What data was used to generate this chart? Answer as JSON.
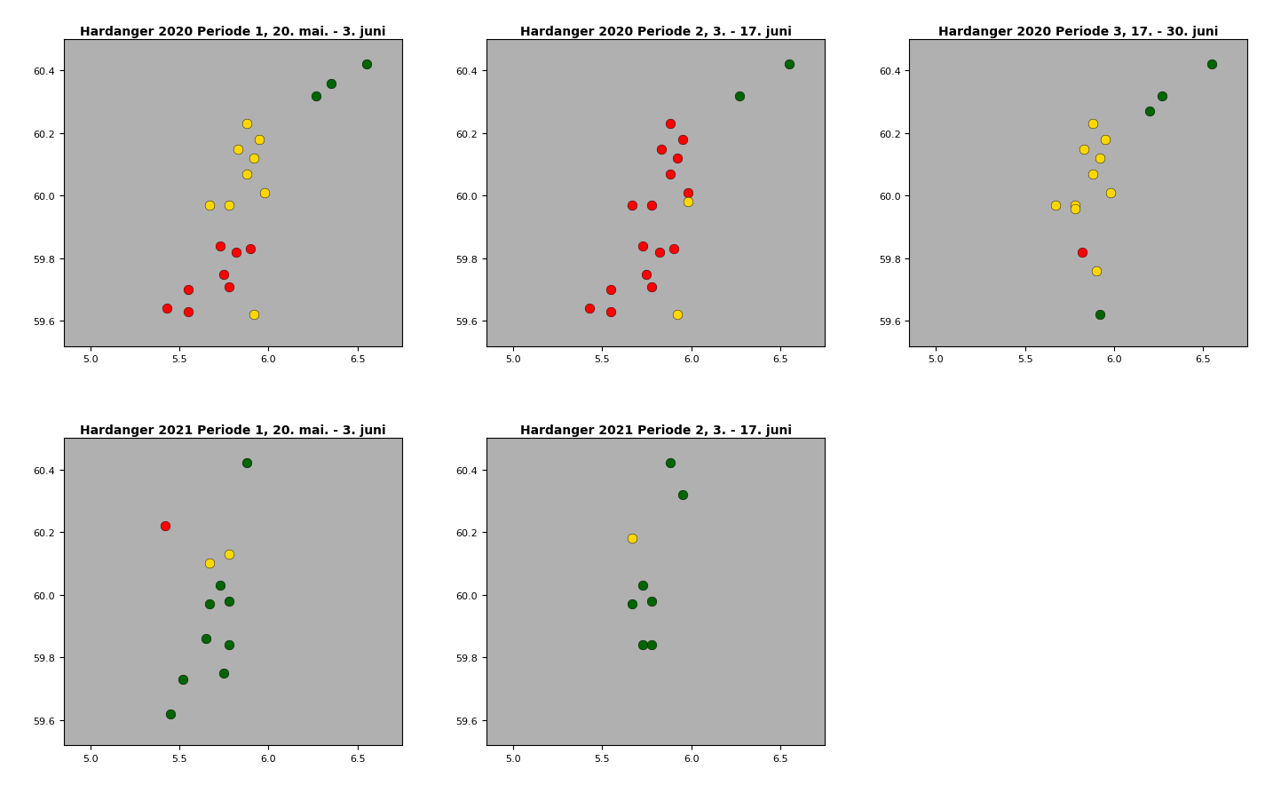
{
  "panels": [
    {
      "title": "Hardanger 2020 Periode 1, 20. mai. - 3. juni",
      "row": 0,
      "col": 0,
      "points": [
        {
          "lon": 6.55,
          "lat": 60.42,
          "color": "#006400"
        },
        {
          "lon": 6.35,
          "lat": 60.36,
          "color": "#006400"
        },
        {
          "lon": 6.27,
          "lat": 60.32,
          "color": "#006400"
        },
        {
          "lon": 5.88,
          "lat": 60.23,
          "color": "#FFD700"
        },
        {
          "lon": 5.95,
          "lat": 60.18,
          "color": "#FFD700"
        },
        {
          "lon": 5.83,
          "lat": 60.15,
          "color": "#FFD700"
        },
        {
          "lon": 5.92,
          "lat": 60.12,
          "color": "#FFD700"
        },
        {
          "lon": 5.88,
          "lat": 60.07,
          "color": "#FFD700"
        },
        {
          "lon": 5.98,
          "lat": 60.01,
          "color": "#FFD700"
        },
        {
          "lon": 5.78,
          "lat": 59.97,
          "color": "#FFD700"
        },
        {
          "lon": 5.67,
          "lat": 59.97,
          "color": "#FFD700"
        },
        {
          "lon": 5.73,
          "lat": 59.84,
          "color": "red"
        },
        {
          "lon": 5.82,
          "lat": 59.82,
          "color": "red"
        },
        {
          "lon": 5.9,
          "lat": 59.83,
          "color": "red"
        },
        {
          "lon": 5.75,
          "lat": 59.75,
          "color": "red"
        },
        {
          "lon": 5.78,
          "lat": 59.71,
          "color": "red"
        },
        {
          "lon": 5.55,
          "lat": 59.7,
          "color": "red"
        },
        {
          "lon": 5.43,
          "lat": 59.64,
          "color": "red"
        },
        {
          "lon": 5.55,
          "lat": 59.63,
          "color": "red"
        },
        {
          "lon": 5.92,
          "lat": 59.62,
          "color": "#FFD700"
        }
      ]
    },
    {
      "title": "Hardanger 2020 Periode 2, 3. - 17. juni",
      "row": 0,
      "col": 1,
      "points": [
        {
          "lon": 6.55,
          "lat": 60.42,
          "color": "#006400"
        },
        {
          "lon": 6.27,
          "lat": 60.32,
          "color": "#006400"
        },
        {
          "lon": 5.88,
          "lat": 60.23,
          "color": "red"
        },
        {
          "lon": 5.95,
          "lat": 60.18,
          "color": "red"
        },
        {
          "lon": 5.83,
          "lat": 60.15,
          "color": "red"
        },
        {
          "lon": 5.92,
          "lat": 60.12,
          "color": "red"
        },
        {
          "lon": 5.88,
          "lat": 60.07,
          "color": "red"
        },
        {
          "lon": 5.98,
          "lat": 60.01,
          "color": "red"
        },
        {
          "lon": 5.78,
          "lat": 59.97,
          "color": "red"
        },
        {
          "lon": 5.67,
          "lat": 59.97,
          "color": "red"
        },
        {
          "lon": 5.73,
          "lat": 59.84,
          "color": "red"
        },
        {
          "lon": 5.82,
          "lat": 59.82,
          "color": "red"
        },
        {
          "lon": 5.9,
          "lat": 59.83,
          "color": "red"
        },
        {
          "lon": 5.75,
          "lat": 59.75,
          "color": "red"
        },
        {
          "lon": 5.78,
          "lat": 59.71,
          "color": "red"
        },
        {
          "lon": 5.55,
          "lat": 59.7,
          "color": "red"
        },
        {
          "lon": 5.43,
          "lat": 59.64,
          "color": "red"
        },
        {
          "lon": 5.55,
          "lat": 59.63,
          "color": "red"
        },
        {
          "lon": 5.92,
          "lat": 59.62,
          "color": "#FFD700"
        },
        {
          "lon": 5.98,
          "lat": 59.98,
          "color": "#FFD700"
        }
      ]
    },
    {
      "title": "Hardanger 2020 Periode 3, 17. - 30. juni",
      "row": 0,
      "col": 2,
      "points": [
        {
          "lon": 6.55,
          "lat": 60.42,
          "color": "#006400"
        },
        {
          "lon": 6.27,
          "lat": 60.32,
          "color": "#006400"
        },
        {
          "lon": 6.2,
          "lat": 60.27,
          "color": "#006400"
        },
        {
          "lon": 5.88,
          "lat": 60.23,
          "color": "#FFD700"
        },
        {
          "lon": 5.95,
          "lat": 60.18,
          "color": "#FFD700"
        },
        {
          "lon": 5.83,
          "lat": 60.15,
          "color": "#FFD700"
        },
        {
          "lon": 5.92,
          "lat": 60.12,
          "color": "#FFD700"
        },
        {
          "lon": 5.88,
          "lat": 60.07,
          "color": "#FFD700"
        },
        {
          "lon": 5.98,
          "lat": 60.01,
          "color": "#FFD700"
        },
        {
          "lon": 5.78,
          "lat": 59.97,
          "color": "#FFD700"
        },
        {
          "lon": 5.67,
          "lat": 59.97,
          "color": "#FFD700"
        },
        {
          "lon": 5.78,
          "lat": 59.96,
          "color": "#FFD700"
        },
        {
          "lon": 5.82,
          "lat": 59.82,
          "color": "red"
        },
        {
          "lon": 5.9,
          "lat": 59.76,
          "color": "#FFD700"
        },
        {
          "lon": 5.92,
          "lat": 59.62,
          "color": "#006400"
        }
      ]
    },
    {
      "title": "Hardanger 2021 Periode 1, 20. mai. - 3. juni",
      "row": 1,
      "col": 0,
      "points": [
        {
          "lon": 5.88,
          "lat": 60.42,
          "color": "#006400"
        },
        {
          "lon": 5.42,
          "lat": 60.22,
          "color": "red"
        },
        {
          "lon": 5.78,
          "lat": 60.13,
          "color": "#FFD700"
        },
        {
          "lon": 5.67,
          "lat": 60.1,
          "color": "#FFD700"
        },
        {
          "lon": 5.73,
          "lat": 60.03,
          "color": "#006400"
        },
        {
          "lon": 5.78,
          "lat": 59.98,
          "color": "#006400"
        },
        {
          "lon": 5.67,
          "lat": 59.97,
          "color": "#006400"
        },
        {
          "lon": 5.65,
          "lat": 59.86,
          "color": "#006400"
        },
        {
          "lon": 5.78,
          "lat": 59.84,
          "color": "#006400"
        },
        {
          "lon": 5.75,
          "lat": 59.75,
          "color": "#006400"
        },
        {
          "lon": 5.52,
          "lat": 59.73,
          "color": "#006400"
        },
        {
          "lon": 5.45,
          "lat": 59.62,
          "color": "#006400"
        }
      ]
    },
    {
      "title": "Hardanger 2021 Periode 2, 3. - 17. juni",
      "row": 1,
      "col": 1,
      "points": [
        {
          "lon": 5.88,
          "lat": 60.42,
          "color": "#006400"
        },
        {
          "lon": 5.95,
          "lat": 60.32,
          "color": "#006400"
        },
        {
          "lon": 5.67,
          "lat": 60.18,
          "color": "#FFD700"
        },
        {
          "lon": 5.73,
          "lat": 60.03,
          "color": "#006400"
        },
        {
          "lon": 5.78,
          "lat": 59.98,
          "color": "#006400"
        },
        {
          "lon": 5.67,
          "lat": 59.97,
          "color": "#006400"
        },
        {
          "lon": 5.73,
          "lat": 59.84,
          "color": "#006400"
        },
        {
          "lon": 5.78,
          "lat": 59.84,
          "color": "#006400"
        }
      ]
    }
  ],
  "xlim": [
    4.85,
    6.75
  ],
  "ylim": [
    59.52,
    60.5
  ],
  "xticks": [
    5.0,
    5.5,
    6.0,
    6.5
  ],
  "yticks": [
    59.6,
    59.8,
    60.0,
    60.2,
    60.4
  ],
  "bg_color": "#b0b0b0",
  "land_color": "#d3d3d3",
  "water_color": "white",
  "fig_bg": "#ffffff",
  "title_fontsize": 10,
  "axis_fontsize": 8,
  "dot_size": 60
}
